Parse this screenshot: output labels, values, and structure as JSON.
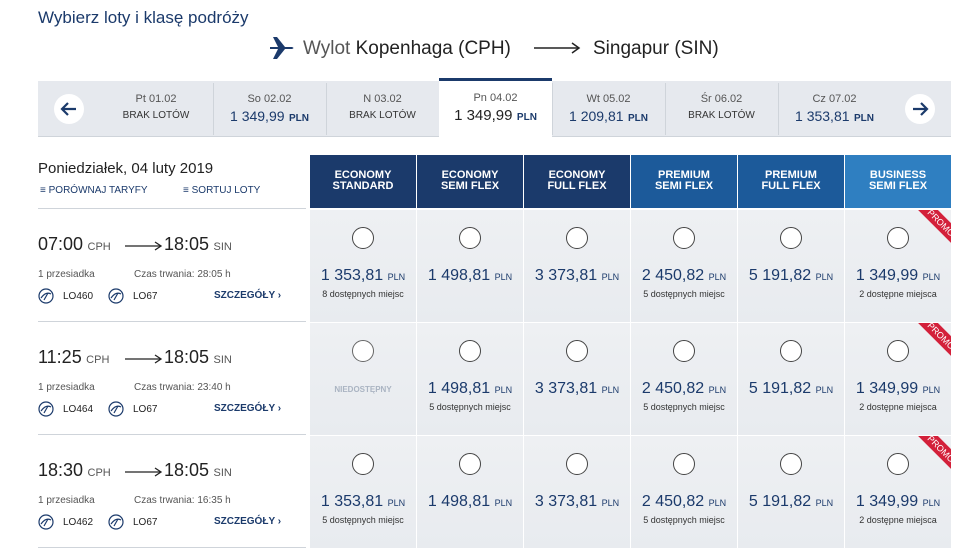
{
  "header": {
    "title": "Wybierz loty i klasę podróży"
  },
  "route": {
    "label": "Wylot",
    "origin": "Kopenhaga (CPH)",
    "destination": "Singapur (SIN)"
  },
  "currency": "PLN",
  "dates": [
    {
      "day": "Pt 01.02",
      "status": "BRAK LOTÓW"
    },
    {
      "day": "So 02.02",
      "price": "1 349,99"
    },
    {
      "day": "N 03.02",
      "status": "BRAK LOTÓW"
    },
    {
      "day": "Pn 04.02",
      "price": "1 349,99",
      "selected": true
    },
    {
      "day": "Wt 05.02",
      "price": "1 209,81"
    },
    {
      "day": "Śr 06.02",
      "status": "BRAK LOTÓW"
    },
    {
      "day": "Cz 07.02",
      "price": "1 353,81"
    }
  ],
  "selected_date": "Poniedziałek, 04 luty 2019",
  "actions": {
    "compare": "PORÓWNAJ TARYFY",
    "sort": "SORTUJ LOTY"
  },
  "fares": [
    {
      "lines": [
        "ECONOMY",
        "STANDARD"
      ],
      "color": "#1b3a6b"
    },
    {
      "lines": [
        "ECONOMY",
        "SEMI FLEX"
      ],
      "color": "#1b3a6b"
    },
    {
      "lines": [
        "ECONOMY",
        "FULL FLEX"
      ],
      "color": "#1b3a6b"
    },
    {
      "lines": [
        "PREMIUM",
        "SEMI FLEX"
      ],
      "color": "#1c5a9a"
    },
    {
      "lines": [
        "PREMIUM",
        "FULL FLEX"
      ],
      "color": "#1c5a9a"
    },
    {
      "lines": [
        "BUSINESS",
        "SEMI FLEX"
      ],
      "color": "#2f7fc1",
      "promo": true
    }
  ],
  "promo": "PROMO",
  "details": "SZCZEGÓŁY",
  "flights": [
    {
      "departure": "07:00",
      "origin": "CPH",
      "arrival": "18:05",
      "destination": "SIN",
      "stops": "1 przesiadka",
      "duration": "Czas trwania: 28:05 h",
      "numbers": [
        "LO460",
        "LO67"
      ],
      "prices": [
        {
          "price": "1 353,81",
          "seats": "8 dostępnych miejsc"
        },
        {
          "price": "1 498,81"
        },
        {
          "price": "3 373,81"
        },
        {
          "price": "2 450,82",
          "seats": "5 dostępnych miejsc"
        },
        {
          "price": "5 191,82"
        },
        {
          "price": "1 349,99",
          "seats": "2 dostępne miejsca"
        }
      ]
    },
    {
      "departure": "11:25",
      "origin": "CPH",
      "arrival": "18:05",
      "destination": "SIN",
      "stops": "1 przesiadka",
      "duration": "Czas trwania: 23:40 h",
      "numbers": [
        "LO464",
        "LO67"
      ],
      "prices": [
        {
          "status": "NIEDOSTĘPNY"
        },
        {
          "price": "1 498,81",
          "seats": "5 dostępnych miejsc"
        },
        {
          "price": "3 373,81"
        },
        {
          "price": "2 450,82",
          "seats": "5 dostępnych miejsc"
        },
        {
          "price": "5 191,82"
        },
        {
          "price": "1 349,99",
          "seats": "2 dostępne miejsca"
        }
      ]
    },
    {
      "departure": "18:30",
      "origin": "CPH",
      "arrival": "18:05",
      "destination": "SIN",
      "stops": "1 przesiadka",
      "duration": "Czas trwania: 16:35 h",
      "numbers": [
        "LO462",
        "LO67"
      ],
      "prices": [
        {
          "price": "1 353,81",
          "seats": "5 dostępnych miejsc"
        },
        {
          "price": "1 498,81"
        },
        {
          "price": "3 373,81"
        },
        {
          "price": "2 450,82",
          "seats": "5 dostępnych miejsc"
        },
        {
          "price": "5 191,82"
        },
        {
          "price": "1 349,99",
          "seats": "2 dostępne miejsca"
        }
      ]
    }
  ]
}
